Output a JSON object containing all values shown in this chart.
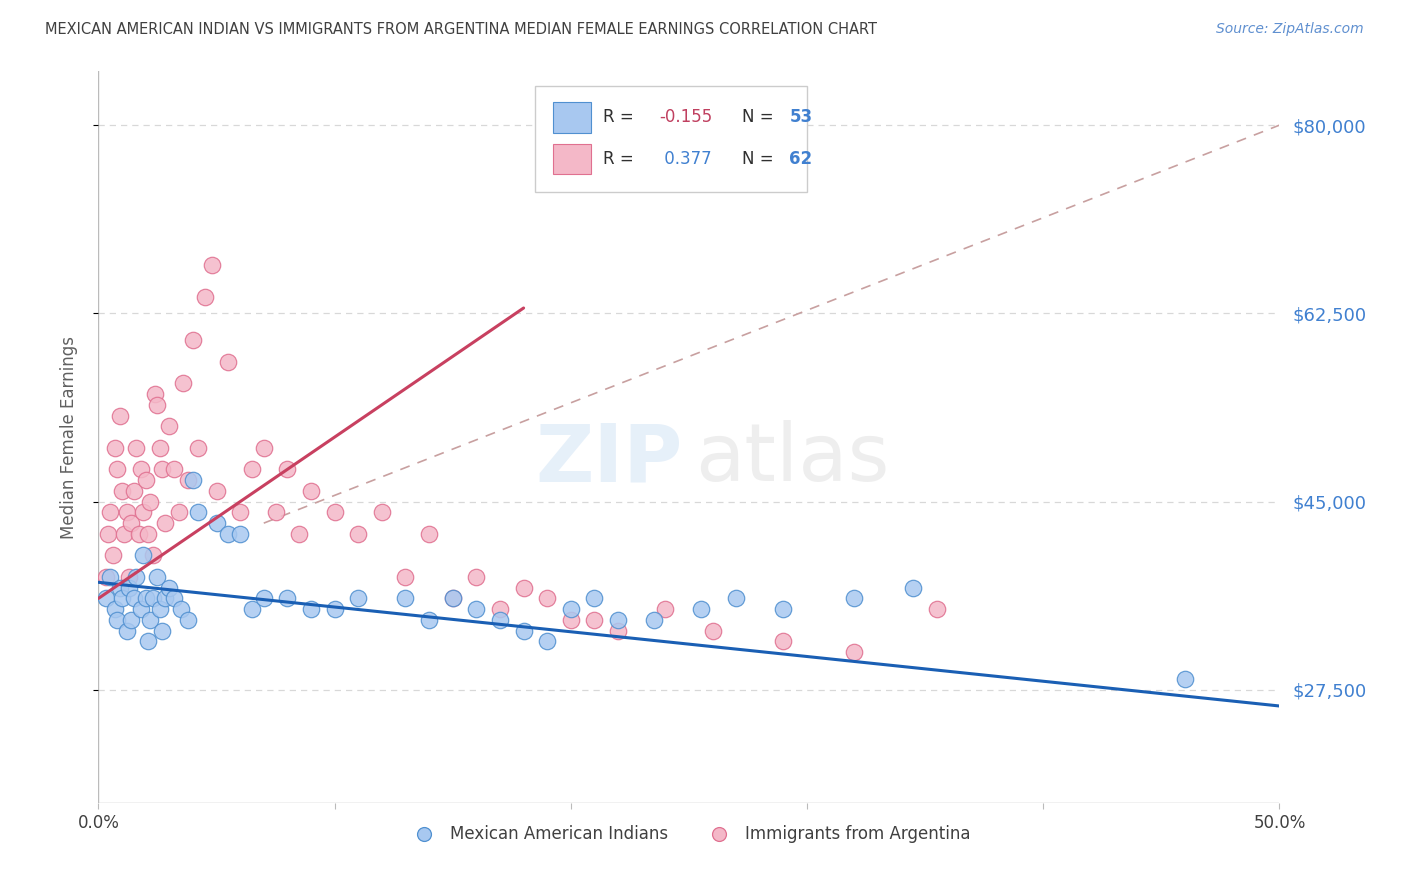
{
  "title": "MEXICAN AMERICAN INDIAN VS IMMIGRANTS FROM ARGENTINA MEDIAN FEMALE EARNINGS CORRELATION CHART",
  "source": "Source: ZipAtlas.com",
  "ylabel": "Median Female Earnings",
  "xlim": [
    0.0,
    0.5
  ],
  "ylim": [
    17000,
    85000
  ],
  "yticks": [
    27500,
    45000,
    62500,
    80000
  ],
  "ytick_labels": [
    "$27,500",
    "$45,000",
    "$62,500",
    "$80,000"
  ],
  "xticks": [
    0.0,
    0.1,
    0.2,
    0.3,
    0.4,
    0.5
  ],
  "xtick_labels": [
    "0.0%",
    "",
    "",
    "",
    "",
    "50.0%"
  ],
  "blue_R": -0.155,
  "blue_N": 53,
  "pink_R": 0.377,
  "pink_N": 62,
  "blue_label": "Mexican American Indians",
  "pink_label": "Immigrants from Argentina",
  "blue_color": "#a8c8f0",
  "pink_color": "#f4b8c8",
  "blue_edge_color": "#5090d0",
  "pink_edge_color": "#e07090",
  "blue_line_color": "#1a5fb4",
  "pink_line_color": "#c84060",
  "grid_color": "#d8d8d8",
  "ref_line_color": "#c8a0a0",
  "background_color": "#ffffff",
  "watermark_zip_color": "#b8d4f0",
  "watermark_atlas_color": "#c8c8c8",
  "title_color": "#404040",
  "source_color": "#6090d0",
  "axis_label_color": "#606060",
  "right_tick_color": "#4080d0",
  "legend_text_color": "#303030",
  "legend_val_blue": "#4080d0",
  "legend_val_red": "#c04060",
  "blue_scatter_x": [
    0.003,
    0.005,
    0.007,
    0.008,
    0.009,
    0.01,
    0.012,
    0.013,
    0.014,
    0.015,
    0.016,
    0.018,
    0.019,
    0.02,
    0.021,
    0.022,
    0.023,
    0.025,
    0.026,
    0.027,
    0.028,
    0.03,
    0.032,
    0.035,
    0.038,
    0.04,
    0.042,
    0.05,
    0.055,
    0.06,
    0.065,
    0.07,
    0.08,
    0.09,
    0.1,
    0.11,
    0.13,
    0.14,
    0.15,
    0.16,
    0.17,
    0.18,
    0.19,
    0.2,
    0.21,
    0.22,
    0.235,
    0.255,
    0.27,
    0.29,
    0.32,
    0.345,
    0.46
  ],
  "blue_scatter_y": [
    36000,
    38000,
    35000,
    34000,
    37000,
    36000,
    33000,
    37000,
    34000,
    36000,
    38000,
    35000,
    40000,
    36000,
    32000,
    34000,
    36000,
    38000,
    35000,
    33000,
    36000,
    37000,
    36000,
    35000,
    34000,
    47000,
    44000,
    43000,
    42000,
    42000,
    35000,
    36000,
    36000,
    35000,
    35000,
    36000,
    36000,
    34000,
    36000,
    35000,
    34000,
    33000,
    32000,
    35000,
    36000,
    34000,
    34000,
    35000,
    36000,
    35000,
    36000,
    37000,
    28500
  ],
  "pink_scatter_x": [
    0.003,
    0.004,
    0.005,
    0.006,
    0.007,
    0.008,
    0.009,
    0.01,
    0.011,
    0.012,
    0.013,
    0.014,
    0.015,
    0.016,
    0.017,
    0.018,
    0.019,
    0.02,
    0.021,
    0.022,
    0.023,
    0.024,
    0.025,
    0.026,
    0.027,
    0.028,
    0.03,
    0.032,
    0.034,
    0.036,
    0.038,
    0.04,
    0.042,
    0.045,
    0.048,
    0.05,
    0.055,
    0.06,
    0.065,
    0.07,
    0.075,
    0.08,
    0.085,
    0.09,
    0.1,
    0.11,
    0.12,
    0.13,
    0.14,
    0.15,
    0.16,
    0.17,
    0.18,
    0.19,
    0.2,
    0.21,
    0.22,
    0.24,
    0.26,
    0.29,
    0.32,
    0.355
  ],
  "pink_scatter_y": [
    38000,
    42000,
    44000,
    40000,
    50000,
    48000,
    53000,
    46000,
    42000,
    44000,
    38000,
    43000,
    46000,
    50000,
    42000,
    48000,
    44000,
    47000,
    42000,
    45000,
    40000,
    55000,
    54000,
    50000,
    48000,
    43000,
    52000,
    48000,
    44000,
    56000,
    47000,
    60000,
    50000,
    64000,
    67000,
    46000,
    58000,
    44000,
    48000,
    50000,
    44000,
    48000,
    42000,
    46000,
    44000,
    42000,
    44000,
    38000,
    42000,
    36000,
    38000,
    35000,
    37000,
    36000,
    34000,
    34000,
    33000,
    35000,
    33000,
    32000,
    31000,
    35000
  ],
  "blue_line_x": [
    0.0,
    0.5
  ],
  "blue_line_y": [
    37500,
    26000
  ],
  "pink_line_x": [
    0.0,
    0.18
  ],
  "pink_line_y": [
    36000,
    63000
  ],
  "ref_line_x": [
    0.07,
    0.5
  ],
  "ref_line_y": [
    43000,
    80000
  ]
}
